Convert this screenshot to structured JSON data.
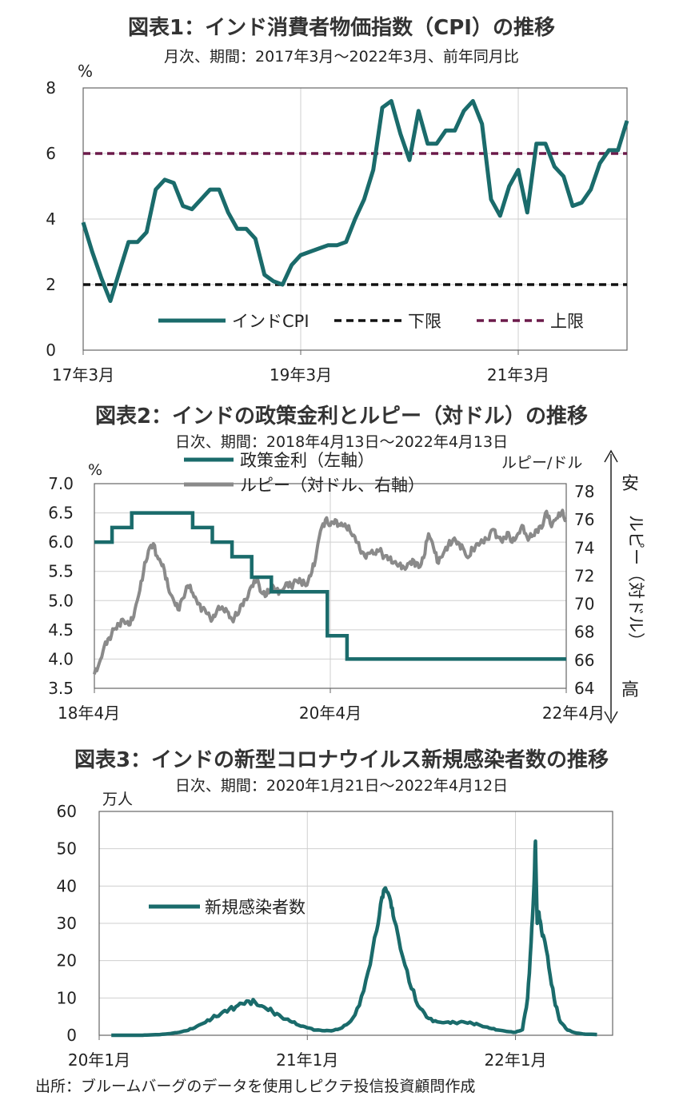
{
  "charts": [
    {
      "title": "図表1：インド消費者物価指数（CPI）の推移",
      "subtitle": "月次、期間：2017年3月～2022年3月、前年同月比",
      "unit": "%"
    },
    {
      "title": "図表2：インドの政策金利とルピー（対ドル）の推移",
      "subtitle": "日次、期間：2018年4月13日～2022年4月13日",
      "unit_left": "%",
      "unit_right": "ルピー/ドル",
      "side_labels": [
        "安",
        "ルピー（対ドル）",
        "高"
      ]
    },
    {
      "title": "図表3：インドの新型コロナウイルス新規感染者数の推移",
      "subtitle": "日次、期間：2020年1月21日～2022年4月12日",
      "unit": "万人"
    }
  ],
  "source": "出所：ブルームバーグのデータを使用しピクテ投信投資顧問作成",
  "chart_data": [
    {
      "type": "line",
      "ylim": [
        0,
        8
      ],
      "yticks": [
        "0",
        "2",
        "4",
        "6",
        "8"
      ],
      "x_tick_labels": [
        "17年3月",
        "19年3月",
        "21年3月"
      ],
      "x_tick_index": [
        0,
        24,
        48
      ],
      "grid": true,
      "legend_position": "bottom-center",
      "series": [
        {
          "name": "インドCPI",
          "color": "#1a6b6b",
          "values": [
            3.9,
            3.0,
            2.2,
            1.5,
            2.4,
            3.3,
            3.3,
            3.6,
            4.9,
            5.2,
            5.1,
            4.4,
            4.3,
            4.6,
            4.9,
            4.9,
            4.2,
            3.7,
            3.7,
            3.4,
            2.3,
            2.1,
            2.0,
            2.6,
            2.9,
            3.0,
            3.1,
            3.2,
            3.2,
            3.3,
            4.0,
            4.6,
            5.5,
            7.4,
            7.6,
            6.6,
            5.8,
            7.3,
            6.3,
            6.3,
            6.7,
            6.7,
            7.3,
            7.6,
            6.9,
            4.6,
            4.1,
            5.0,
            5.5,
            4.2,
            6.3,
            6.3,
            5.6,
            5.3,
            4.4,
            4.5,
            4.9,
            5.7,
            6.1,
            6.1,
            7.0
          ]
        },
        {
          "name": "下限",
          "color": "#111111",
          "dashed": true,
          "constant": 2
        },
        {
          "name": "上限",
          "color": "#6b1a4a",
          "dashed": true,
          "constant": 6
        }
      ]
    },
    {
      "type": "line",
      "ylim": [
        3.5,
        7.0
      ],
      "yticks": [
        "3.5",
        "4.0",
        "4.5",
        "5.0",
        "5.5",
        "6.0",
        "6.5",
        "7.0"
      ],
      "y2lim": [
        64,
        80
      ],
      "y2ticks": [
        "64",
        "66",
        "68",
        "70",
        "72",
        "74",
        "76",
        "78"
      ],
      "x_tick_labels": [
        "18年4月",
        "20年4月",
        "22年4月"
      ],
      "x_tick_month": [
        0,
        24,
        48
      ],
      "grid": true,
      "legend_position": "top-center",
      "series": [
        {
          "name": "政策金利（左軸）",
          "color": "#1a6b6b",
          "axis": "left",
          "steps": [
            [
              0,
              6.0
            ],
            [
              1.8,
              6.25
            ],
            [
              3.8,
              6.5
            ],
            [
              10,
              6.25
            ],
            [
              12,
              6.0
            ],
            [
              14,
              5.75
            ],
            [
              16,
              5.4
            ],
            [
              18,
              5.15
            ],
            [
              23.7,
              4.4
            ],
            [
              25.7,
              4.0
            ],
            [
              48,
              4.0
            ]
          ]
        },
        {
          "name": "ルピー（対ドル、右軸）",
          "color": "#8a8a8a",
          "axis": "right",
          "points": [
            [
              0,
              65.0
            ],
            [
              0.5,
              65.8
            ],
            [
              1,
              67.0
            ],
            [
              1.5,
              67.6
            ],
            [
              2,
              68.2
            ],
            [
              2.5,
              68.6
            ],
            [
              3,
              68.8
            ],
            [
              3.5,
              68.5
            ],
            [
              4,
              69.1
            ],
            [
              4.5,
              70.6
            ],
            [
              5,
              72.3
            ],
            [
              5.5,
              73.8
            ],
            [
              6,
              74.3
            ],
            [
              6.5,
              73.2
            ],
            [
              7,
              72.8
            ],
            [
              7.5,
              71.2
            ],
            [
              8,
              70.4
            ],
            [
              8.5,
              69.6
            ],
            [
              9,
              70.4
            ],
            [
              9.5,
              71.3
            ],
            [
              10,
              70.8
            ],
            [
              10.5,
              70.0
            ],
            [
              11,
              69.7
            ],
            [
              11.5,
              69.3
            ],
            [
              12,
              68.9
            ],
            [
              12.5,
              69.6
            ],
            [
              13,
              69.8
            ],
            [
              13.5,
              69.5
            ],
            [
              14,
              68.9
            ],
            [
              14.5,
              69.2
            ],
            [
              15,
              70.0
            ],
            [
              15.5,
              70.3
            ],
            [
              16,
              71.3
            ],
            [
              16.5,
              71.7
            ],
            [
              17,
              70.8
            ],
            [
              17.5,
              70.6
            ],
            [
              18,
              71.3
            ],
            [
              18.5,
              71.0
            ],
            [
              19,
              70.9
            ],
            [
              19.5,
              71.5
            ],
            [
              20,
              71.3
            ],
            [
              20.5,
              71.7
            ],
            [
              21,
              71.6
            ],
            [
              21.5,
              71.3
            ],
            [
              22,
              72.0
            ],
            [
              22.5,
              73.2
            ],
            [
              23,
              75.2
            ],
            [
              23.5,
              76.0
            ],
            [
              24,
              75.6
            ],
            [
              24.5,
              76.0
            ],
            [
              25,
              75.6
            ],
            [
              25.5,
              75.7
            ],
            [
              26,
              75.2
            ],
            [
              26.5,
              74.8
            ],
            [
              27,
              73.9
            ],
            [
              27.5,
              73.4
            ],
            [
              28,
              73.6
            ],
            [
              28.5,
              73.6
            ],
            [
              29,
              73.8
            ],
            [
              29.5,
              73.4
            ],
            [
              30,
              73.2
            ],
            [
              30.5,
              73.0
            ],
            [
              31,
              72.8
            ],
            [
              31.5,
              72.6
            ],
            [
              32,
              72.9
            ],
            [
              32.5,
              73.1
            ],
            [
              33,
              72.6
            ],
            [
              33.5,
              73.3
            ],
            [
              34,
              75.0
            ],
            [
              34.5,
              74.0
            ],
            [
              35,
              72.9
            ],
            [
              35.5,
              73.6
            ],
            [
              36,
              74.2
            ],
            [
              36.5,
              74.6
            ],
            [
              37,
              74.4
            ],
            [
              37.5,
              74.0
            ],
            [
              38,
              73.3
            ],
            [
              38.5,
              73.9
            ],
            [
              39,
              74.3
            ],
            [
              39.5,
              74.4
            ],
            [
              40,
              74.6
            ],
            [
              40.5,
              75.3
            ],
            [
              41,
              74.8
            ],
            [
              41.5,
              74.4
            ],
            [
              42,
              75.1
            ],
            [
              42.5,
              74.4
            ],
            [
              43,
              74.9
            ],
            [
              43.5,
              75.6
            ],
            [
              44,
              74.8
            ],
            [
              44.5,
              74.8
            ],
            [
              45,
              75.3
            ],
            [
              45.5,
              75.4
            ],
            [
              46,
              76.6
            ],
            [
              46.5,
              75.5
            ],
            [
              47,
              76.1
            ],
            [
              47.5,
              76.5
            ],
            [
              48,
              76.0
            ]
          ]
        }
      ]
    },
    {
      "type": "line",
      "ylim": [
        0,
        60
      ],
      "yticks": [
        "0",
        "10",
        "20",
        "30",
        "40",
        "50",
        "60"
      ],
      "x_tick_labels": [
        "20年1月",
        "21年1月",
        "22年1月"
      ],
      "x_tick_month": [
        0,
        12,
        24
      ],
      "grid": true,
      "legend_position": "left",
      "series": [
        {
          "name": "新規感染者数",
          "color": "#1a6b6b",
          "points": [
            [
              0.7,
              0.0
            ],
            [
              1.5,
              0.0
            ],
            [
              2.5,
              0.01
            ],
            [
              3.0,
              0.1
            ],
            [
              3.5,
              0.2
            ],
            [
              4.0,
              0.4
            ],
            [
              4.5,
              0.7
            ],
            [
              5.0,
              1.2
            ],
            [
              5.5,
              2.0
            ],
            [
              6.0,
              3.2
            ],
            [
              6.5,
              4.5
            ],
            [
              7.0,
              5.7
            ],
            [
              7.5,
              7.0
            ],
            [
              8.0,
              8.0
            ],
            [
              8.5,
              9.2
            ],
            [
              9.0,
              8.8
            ],
            [
              9.5,
              7.6
            ],
            [
              10.0,
              6.3
            ],
            [
              10.5,
              4.9
            ],
            [
              11.0,
              3.8
            ],
            [
              11.5,
              2.7
            ],
            [
              12.0,
              2.0
            ],
            [
              12.5,
              1.4
            ],
            [
              13.0,
              1.2
            ],
            [
              13.5,
              1.3
            ],
            [
              14.0,
              2.0
            ],
            [
              14.5,
              3.8
            ],
            [
              15.0,
              8.0
            ],
            [
              15.5,
              17.0
            ],
            [
              16.0,
              28.0
            ],
            [
              16.3,
              37.0
            ],
            [
              16.5,
              39.5
            ],
            [
              16.8,
              36.0
            ],
            [
              17.0,
              31.0
            ],
            [
              17.5,
              21.0
            ],
            [
              18.0,
              12.5
            ],
            [
              18.5,
              7.2
            ],
            [
              19.0,
              4.5
            ],
            [
              19.5,
              3.6
            ],
            [
              20.0,
              3.5
            ],
            [
              20.5,
              3.4
            ],
            [
              21.0,
              3.6
            ],
            [
              21.5,
              3.2
            ],
            [
              22.0,
              2.6
            ],
            [
              22.5,
              1.9
            ],
            [
              23.0,
              1.4
            ],
            [
              23.5,
              1.0
            ],
            [
              24.0,
              0.8
            ],
            [
              24.4,
              1.5
            ],
            [
              24.7,
              10.0
            ],
            [
              24.9,
              25.0
            ],
            [
              25.05,
              38.0
            ],
            [
              25.15,
              52.0
            ],
            [
              25.25,
              30.0
            ],
            [
              25.35,
              33.0
            ],
            [
              25.5,
              28.0
            ],
            [
              25.7,
              25.0
            ],
            [
              26.0,
              16.0
            ],
            [
              26.3,
              8.0
            ],
            [
              26.6,
              3.5
            ],
            [
              27.0,
              1.4
            ],
            [
              27.5,
              0.6
            ],
            [
              28.0,
              0.3
            ],
            [
              28.7,
              0.2
            ]
          ]
        }
      ]
    }
  ]
}
